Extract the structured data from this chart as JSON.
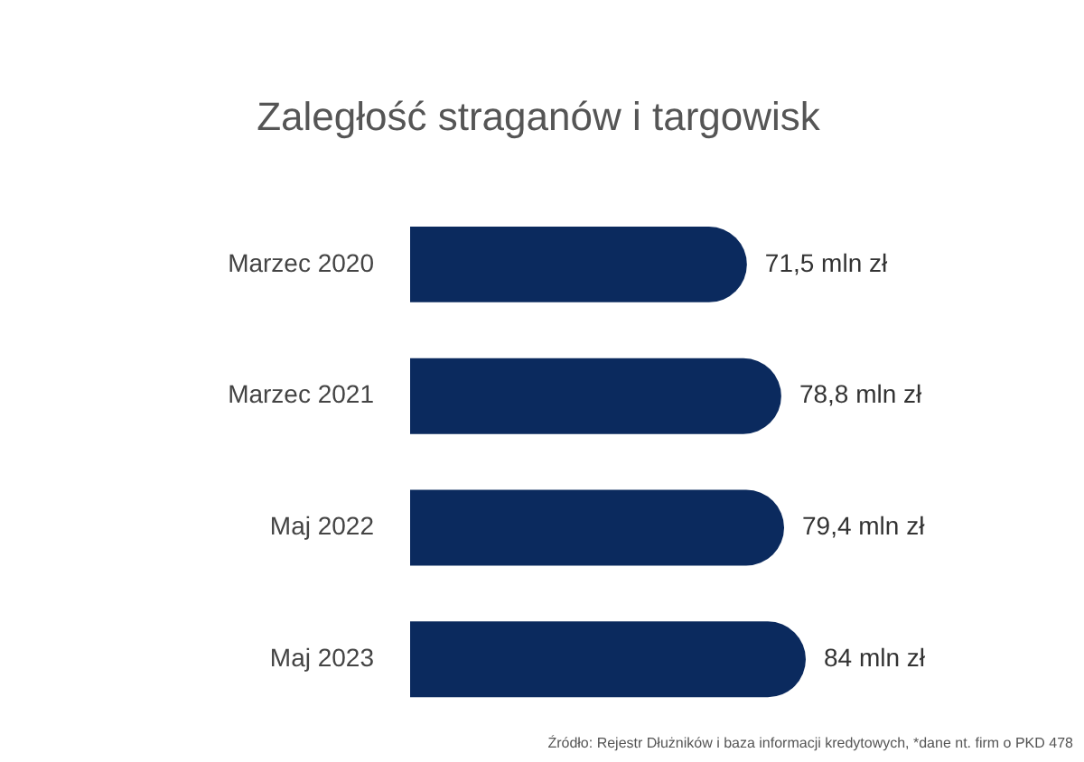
{
  "chart_data": {
    "type": "bar",
    "orientation": "horizontal",
    "title": "Zaległość straganów i targowisk",
    "categories": [
      "Marzec 2020",
      "Marzec 2021",
      "Maj 2022",
      "Maj 2023"
    ],
    "values": [
      71.5,
      78.8,
      79.4,
      84
    ],
    "value_labels": [
      "71,5 mln zł",
      "78,8 mln zł",
      "79,4 mln zł",
      "84 mln zł"
    ],
    "color": "#0b2a5e",
    "annotations": [
      "Źródło: Rejestr Dłużników i baza informacji kredytowych, *dane nt. firm o PKD 478"
    ]
  }
}
